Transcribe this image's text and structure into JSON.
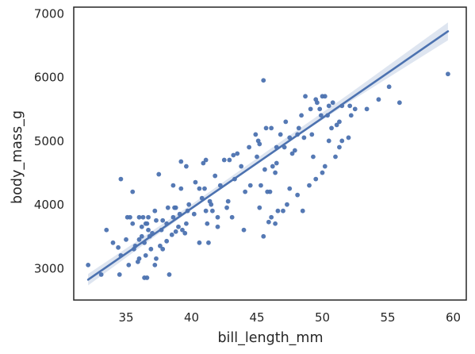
{
  "chart_data": {
    "type": "scatter",
    "title": "",
    "xlabel": "bill_length_mm",
    "ylabel": "body_mass_g",
    "xlim": [
      31,
      61
    ],
    "ylim": [
      2500,
      7100
    ],
    "x_ticks": [
      35,
      40,
      45,
      50,
      55,
      60
    ],
    "y_ticks": [
      3000,
      4000,
      5000,
      6000,
      7000
    ],
    "grid": false,
    "colors": {
      "points": "#4c72b0",
      "line": "#4c72b0",
      "band": "#c8d3e6",
      "frame": "#262626"
    },
    "regression": {
      "x": [
        32.1,
        59.6
      ],
      "y": [
        2820,
        6720
      ]
    },
    "confidence_band": {
      "x": [
        32.1,
        40,
        46,
        52,
        59.6
      ],
      "lower": [
        2730,
        3920,
        4790,
        5600,
        6580
      ],
      "upper": [
        2910,
        4000,
        4870,
        5730,
        6860
      ]
    },
    "points": [
      [
        32.1,
        3050
      ],
      [
        33.1,
        2900
      ],
      [
        33.5,
        3600
      ],
      [
        34.0,
        3400
      ],
      [
        34.4,
        3325
      ],
      [
        34.5,
        2900
      ],
      [
        34.6,
        4400
      ],
      [
        34.6,
        3200
      ],
      [
        35.0,
        3450
      ],
      [
        35.1,
        3800
      ],
      [
        35.2,
        3050
      ],
      [
        35.3,
        3800
      ],
      [
        35.5,
        3700
      ],
      [
        35.5,
        4200
      ],
      [
        35.6,
        3300
      ],
      [
        35.7,
        3350
      ],
      [
        35.9,
        3100
      ],
      [
        36.0,
        3800
      ],
      [
        36.0,
        3450
      ],
      [
        36.0,
        3150
      ],
      [
        36.2,
        3650
      ],
      [
        36.2,
        3500
      ],
      [
        36.3,
        3800
      ],
      [
        36.4,
        3400
      ],
      [
        36.4,
        2850
      ],
      [
        36.5,
        3700
      ],
      [
        36.5,
        3200
      ],
      [
        36.6,
        3700
      ],
      [
        36.6,
        2850
      ],
      [
        36.7,
        3800
      ],
      [
        36.7,
        3600
      ],
      [
        36.8,
        3500
      ],
      [
        36.9,
        3300
      ],
      [
        37.0,
        3550
      ],
      [
        37.2,
        3900
      ],
      [
        37.2,
        3050
      ],
      [
        37.3,
        3750
      ],
      [
        37.3,
        3150
      ],
      [
        37.5,
        4475
      ],
      [
        37.6,
        3350
      ],
      [
        37.7,
        3600
      ],
      [
        37.8,
        3750
      ],
      [
        37.8,
        3300
      ],
      [
        38.1,
        3700
      ],
      [
        38.1,
        3425
      ],
      [
        38.2,
        3950
      ],
      [
        38.3,
        2900
      ],
      [
        38.5,
        3525
      ],
      [
        38.6,
        3800
      ],
      [
        38.6,
        4300
      ],
      [
        38.7,
        3950
      ],
      [
        38.8,
        3950
      ],
      [
        38.8,
        3575
      ],
      [
        39.0,
        3650
      ],
      [
        39.1,
        3850
      ],
      [
        39.2,
        4250
      ],
      [
        39.2,
        4675
      ],
      [
        39.3,
        3600
      ],
      [
        39.5,
        3550
      ],
      [
        39.6,
        3700
      ],
      [
        39.6,
        4600
      ],
      [
        39.7,
        3900
      ],
      [
        39.8,
        4000
      ],
      [
        40.2,
        3850
      ],
      [
        40.3,
        4350
      ],
      [
        40.6,
        4250
      ],
      [
        40.6,
        3400
      ],
      [
        40.8,
        4100
      ],
      [
        40.9,
        4650
      ],
      [
        41.0,
        4250
      ],
      [
        41.1,
        4700
      ],
      [
        41.1,
        3900
      ],
      [
        41.3,
        3400
      ],
      [
        41.4,
        4050
      ],
      [
        41.5,
        4000
      ],
      [
        41.6,
        3900
      ],
      [
        41.8,
        4450
      ],
      [
        42.0,
        3800
      ],
      [
        42.2,
        4300
      ],
      [
        42.5,
        4700
      ],
      [
        42.8,
        4050
      ],
      [
        42.9,
        4700
      ],
      [
        43.2,
        4775
      ],
      [
        43.3,
        4400
      ],
      [
        43.5,
        4800
      ],
      [
        43.8,
        4600
      ],
      [
        44.1,
        4200
      ],
      [
        44.4,
        4900
      ],
      [
        44.5,
        4300
      ],
      [
        44.9,
        5100
      ],
      [
        45.0,
        4750
      ],
      [
        45.1,
        5000
      ],
      [
        45.2,
        4950
      ],
      [
        45.3,
        4300
      ],
      [
        45.5,
        5950
      ],
      [
        45.7,
        5200
      ],
      [
        45.8,
        4200
      ],
      [
        46.1,
        5200
      ],
      [
        46.2,
        4600
      ],
      [
        46.4,
        4500
      ],
      [
        46.5,
        4900
      ],
      [
        46.8,
        5100
      ],
      [
        47.2,
        5300
      ],
      [
        47.5,
        5050
      ],
      [
        47.7,
        4800
      ],
      [
        48.1,
        5100
      ],
      [
        48.2,
        5200
      ],
      [
        48.4,
        5400
      ],
      [
        48.7,
        5700
      ],
      [
        49.1,
        5500
      ],
      [
        49.2,
        5100
      ],
      [
        49.5,
        5650
      ],
      [
        49.6,
        5600
      ],
      [
        49.8,
        5500
      ],
      [
        49.9,
        5400
      ],
      [
        50.0,
        5700
      ],
      [
        50.2,
        5700
      ],
      [
        50.4,
        5400
      ],
      [
        50.5,
        5550
      ],
      [
        50.7,
        5200
      ],
      [
        50.8,
        5600
      ],
      [
        51.1,
        5250
      ],
      [
        51.3,
        5300
      ],
      [
        51.5,
        5550
      ],
      [
        52.1,
        5550
      ],
      [
        52.2,
        5400
      ],
      [
        52.5,
        5500
      ],
      [
        53.4,
        5500
      ],
      [
        54.3,
        5650
      ],
      [
        55.1,
        5850
      ],
      [
        55.9,
        5600
      ],
      [
        59.6,
        6050
      ],
      [
        41.2,
        3700
      ],
      [
        42.0,
        3650
      ],
      [
        42.7,
        3950
      ],
      [
        43.1,
        3800
      ],
      [
        44.0,
        3600
      ],
      [
        45.2,
        3950
      ],
      [
        45.5,
        3500
      ],
      [
        45.9,
        3725
      ],
      [
        46.0,
        4200
      ],
      [
        46.1,
        3800
      ],
      [
        46.4,
        3700
      ],
      [
        46.6,
        3900
      ],
      [
        47.0,
        3900
      ],
      [
        47.3,
        4000
      ],
      [
        47.5,
        4250
      ],
      [
        48.1,
        4150
      ],
      [
        48.5,
        3900
      ],
      [
        49.0,
        4300
      ],
      [
        49.5,
        4400
      ],
      [
        50.0,
        4500
      ],
      [
        50.2,
        4600
      ],
      [
        51.0,
        4750
      ],
      [
        51.5,
        5000
      ],
      [
        52.0,
        5050
      ],
      [
        45.6,
        4550
      ],
      [
        46.5,
        4650
      ],
      [
        47.1,
        4900
      ],
      [
        47.9,
        4850
      ],
      [
        48.6,
        5050
      ],
      [
        49.3,
        4750
      ],
      [
        50.5,
        5000
      ],
      [
        51.3,
        4900
      ]
    ]
  }
}
